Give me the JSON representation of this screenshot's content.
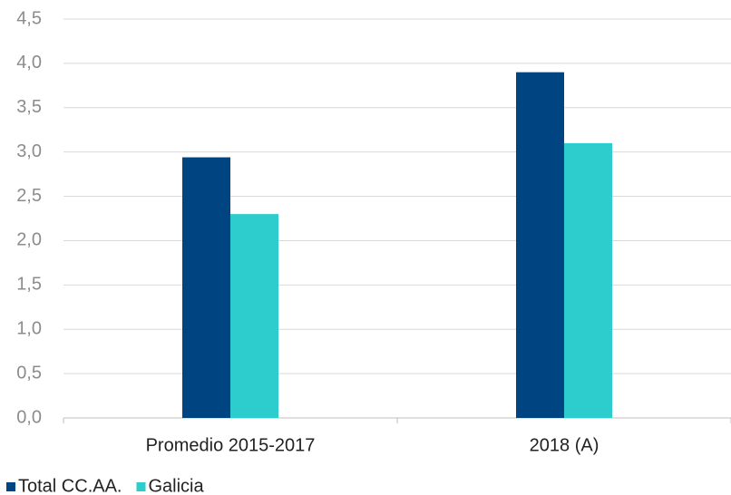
{
  "chart_data": {
    "type": "bar",
    "categories": [
      "Promedio 2015-2017",
      "2018 (A)"
    ],
    "series": [
      {
        "name": "Total CC.AA.",
        "color": "#004481",
        "values": [
          2.94,
          3.9
        ]
      },
      {
        "name": "Galicia",
        "color": "#2dcccd",
        "values": [
          2.3,
          3.1
        ]
      }
    ],
    "ylim": [
      0,
      4.5
    ],
    "yticks": [
      {
        "value": 0,
        "label": "0,0"
      },
      {
        "value": 0.5,
        "label": "0,5"
      },
      {
        "value": 1,
        "label": "1,0"
      },
      {
        "value": 1.5,
        "label": "1,5"
      },
      {
        "value": 2,
        "label": "2,0"
      },
      {
        "value": 2.5,
        "label": "2,5"
      },
      {
        "value": 3,
        "label": "3,0"
      },
      {
        "value": 3.5,
        "label": "3,5"
      },
      {
        "value": 4,
        "label": "4,0"
      },
      {
        "value": 4.5,
        "label": "4,5"
      }
    ],
    "grid": true,
    "legend": "bottom-left"
  }
}
